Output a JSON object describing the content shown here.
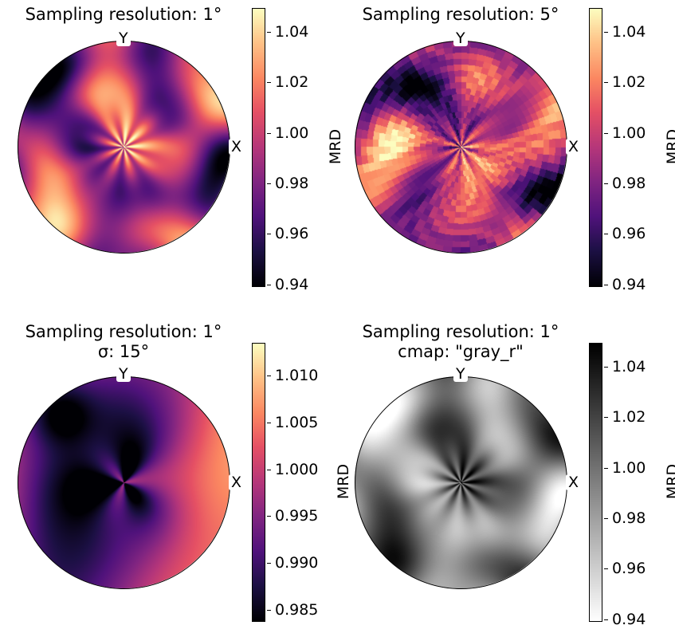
{
  "chart_data": [
    {
      "type": "heatmap",
      "subtype": "pole-figure",
      "title": "Sampling resolution: 1°",
      "subtitle": "",
      "axis_labels": {
        "top": "Y",
        "right": "X"
      },
      "colormap": "magma",
      "colorbar": {
        "label": "MRD",
        "ticks": [
          "0.94",
          "0.96",
          "0.98",
          "1.00",
          "1.02",
          "1.04"
        ],
        "range": [
          0.939,
          1.0495
        ]
      }
    },
    {
      "type": "heatmap",
      "subtype": "pole-figure",
      "title": "Sampling resolution: 5°",
      "subtitle": "",
      "axis_labels": {
        "top": "Y",
        "right": "X"
      },
      "colormap": "magma",
      "colorbar": {
        "label": "MRD",
        "ticks": [
          "0.94",
          "0.96",
          "0.98",
          "1.00",
          "1.02",
          "1.04"
        ],
        "range": [
          0.939,
          1.0495
        ]
      }
    },
    {
      "type": "heatmap",
      "subtype": "pole-figure",
      "title": "Sampling resolution: 1°",
      "subtitle": "σ: 15°",
      "axis_labels": {
        "top": "Y",
        "right": "X"
      },
      "colormap": "magma",
      "colorbar": {
        "label": "MRD",
        "ticks": [
          "0.985",
          "0.990",
          "0.995",
          "1.000",
          "1.005",
          "1.010"
        ],
        "range": [
          0.9837,
          1.0135
        ]
      }
    },
    {
      "type": "heatmap",
      "subtype": "pole-figure",
      "title": "Sampling resolution: 1°",
      "subtitle": "cmap: \"gray_r\"",
      "axis_labels": {
        "top": "Y",
        "right": "X"
      },
      "colormap": "gray_r",
      "colorbar": {
        "label": "MRD",
        "ticks": [
          "0.94",
          "0.96",
          "0.98",
          "1.00",
          "1.02",
          "1.04"
        ],
        "range": [
          0.939,
          1.0495
        ]
      }
    }
  ]
}
